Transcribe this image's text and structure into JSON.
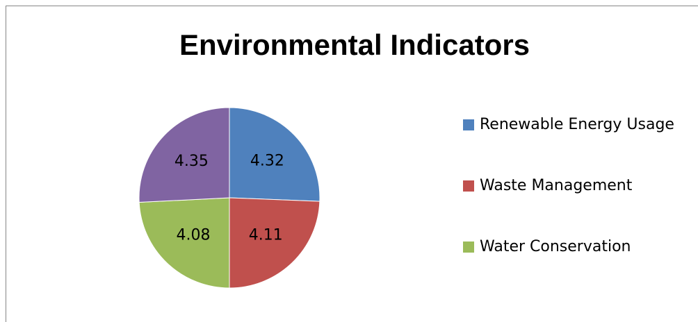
{
  "chart_data": {
    "type": "pie",
    "title": "Environmental Indicators",
    "categories": [
      "Renewable Energy Usage",
      "Waste Management",
      "Water Conservation",
      null
    ],
    "values": [
      4.32,
      4.11,
      4.08,
      4.35
    ],
    "colors": [
      "#4f81bd",
      "#c0504d",
      "#9bbb59",
      "#8064a2"
    ],
    "legend": "right"
  }
}
